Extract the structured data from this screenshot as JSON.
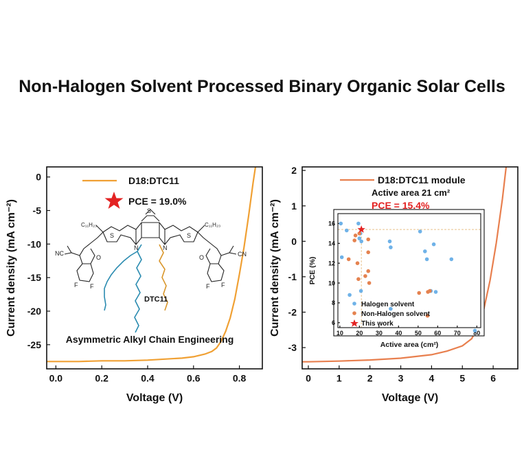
{
  "page_title": "Non-Halogen Solvent Processed Binary Organic Solar Cells",
  "colors": {
    "orange_curve": "#F0A033",
    "module_curve": "#E87F4E",
    "axis": "#111111",
    "star": "#E32222",
    "halogen": "#6FB2E8",
    "non_halogen": "#E5824F",
    "pce_red": "#E32222",
    "side_chain_blue": "#2A8BB0",
    "side_chain_orange": "#D9962B"
  },
  "chart_data": [
    {
      "type": "line",
      "xlabel": "Voltage (V)",
      "ylabel": "Current density (mA cm⁻²)",
      "xlim": [
        -0.04,
        0.9
      ],
      "ylim": [
        -28.6,
        1.5
      ],
      "xticks": [
        0.0,
        0.2,
        0.4,
        0.6,
        0.8
      ],
      "xtick_labels": [
        "0.0",
        "0.2",
        "0.4",
        "0.6",
        "0.8"
      ],
      "yticks": [
        0,
        -5,
        -10,
        -15,
        -20,
        -25
      ],
      "ytick_labels": [
        "0",
        "-5",
        "-10",
        "-15",
        "-20",
        "-25"
      ],
      "series": [
        {
          "name": "D18:DTC11",
          "x": [
            -0.04,
            0.0,
            0.1,
            0.2,
            0.3,
            0.4,
            0.5,
            0.55,
            0.6,
            0.65,
            0.68,
            0.7,
            0.72,
            0.74,
            0.76,
            0.78,
            0.8,
            0.82,
            0.84,
            0.86,
            0.87
          ],
          "y": [
            -27.5,
            -27.5,
            -27.5,
            -27.4,
            -27.4,
            -27.3,
            -27.1,
            -27.0,
            -26.8,
            -26.4,
            -26.0,
            -25.5,
            -24.5,
            -23.0,
            -21.0,
            -18.2,
            -14.5,
            -10.5,
            -5.8,
            -0.8,
            2.0
          ]
        }
      ],
      "annotations": {
        "pce": "PCE = 19.0%",
        "molecule_label": "DTC11",
        "caption": "Asymmetric Alkyl Chain Engineering",
        "c11h23_left": "C₁₁H₂₃",
        "c11h23_right": "C₁₁H₂₃",
        "atom_s": "S",
        "atom_n": "N",
        "atom_f": "F",
        "atom_o": "O",
        "atom_nc": "NC",
        "atom_cn": "CN"
      }
    },
    {
      "type": "line",
      "xlabel": "Voltage (V)",
      "ylabel": "Current density (mA cm⁻²)",
      "xlim": [
        -0.2,
        6.8
      ],
      "ylim": [
        -3.6,
        2.1
      ],
      "xticks": [
        0,
        1,
        2,
        3,
        4,
        5,
        6
      ],
      "xtick_labels": [
        "0",
        "1",
        "2",
        "3",
        "4",
        "5",
        "6"
      ],
      "yticks": [
        2,
        1,
        0,
        -1,
        -2,
        -3
      ],
      "ytick_labels": [
        "2",
        "1",
        "0",
        "-1",
        "-2",
        "-3"
      ],
      "series": [
        {
          "name": "D18:DTC11 module",
          "x": [
            -0.2,
            0.0,
            1.0,
            2.0,
            3.0,
            4.0,
            4.5,
            5.0,
            5.3,
            5.5,
            5.7,
            5.9,
            6.1,
            6.3,
            6.42
          ],
          "y": [
            -3.4,
            -3.4,
            -3.38,
            -3.35,
            -3.3,
            -3.2,
            -3.1,
            -2.95,
            -2.75,
            -2.45,
            -1.9,
            -1.1,
            -0.05,
            1.2,
            2.1
          ]
        }
      ],
      "annotations": {
        "active_area": "Active area 21 cm²",
        "pce": "PCE = 15.4%"
      }
    },
    {
      "type": "scatter",
      "xlabel": "Active area (cm²)",
      "ylabel": "PCE (%)",
      "xlim": [
        9,
        82
      ],
      "ylim": [
        5.5,
        17
      ],
      "xticks": [
        10,
        20,
        30,
        40,
        50,
        60,
        70,
        80
      ],
      "xtick_labels": [
        "10",
        "20",
        "30",
        "40",
        "50",
        "60",
        "70",
        "80"
      ],
      "yticks": [
        6,
        8,
        10,
        12,
        14,
        16
      ],
      "ytick_labels": [
        "6",
        "8",
        "10",
        "12",
        "14",
        "16"
      ],
      "reference_lines": {
        "x": 21,
        "y": 15.4
      },
      "series": [
        {
          "name": "Halogen solvent",
          "points": [
            [
              10.5,
              16.0
            ],
            [
              11,
              12.6
            ],
            [
              13.5,
              15.3
            ],
            [
              15,
              8.8
            ],
            [
              19.5,
              16.0
            ],
            [
              20,
              14.5
            ],
            [
              20.5,
              15.0
            ],
            [
              20.8,
              9.2
            ],
            [
              21,
              14.2
            ],
            [
              35.5,
              14.2
            ],
            [
              36,
              13.6
            ],
            [
              36,
              7.4
            ],
            [
              51,
              15.2
            ],
            [
              53.5,
              13.2
            ],
            [
              54.5,
              12.4
            ],
            [
              56.5,
              9.2
            ],
            [
              58,
              13.9
            ],
            [
              59,
              9.1
            ],
            [
              67,
              12.4
            ],
            [
              79,
              5.2
            ]
          ]
        },
        {
          "name": "Non-Halogen solvent",
          "points": [
            [
              14.5,
              12.4
            ],
            [
              17.5,
              14.3
            ],
            [
              18,
              14.8
            ],
            [
              19,
              12.0
            ],
            [
              19.5,
              10.4
            ],
            [
              20,
              15.0
            ],
            [
              23,
              10.7
            ],
            [
              24.5,
              14.4
            ],
            [
              24.5,
              13.1
            ],
            [
              24.5,
              11.2
            ],
            [
              25,
              10.0
            ],
            [
              50.5,
              9.0
            ],
            [
              55,
              9.1
            ],
            [
              56,
              9.2
            ],
            [
              54.8,
              6.7
            ]
          ]
        },
        {
          "name": "This work",
          "points": [
            [
              21,
              15.4
            ]
          ]
        }
      ]
    }
  ]
}
